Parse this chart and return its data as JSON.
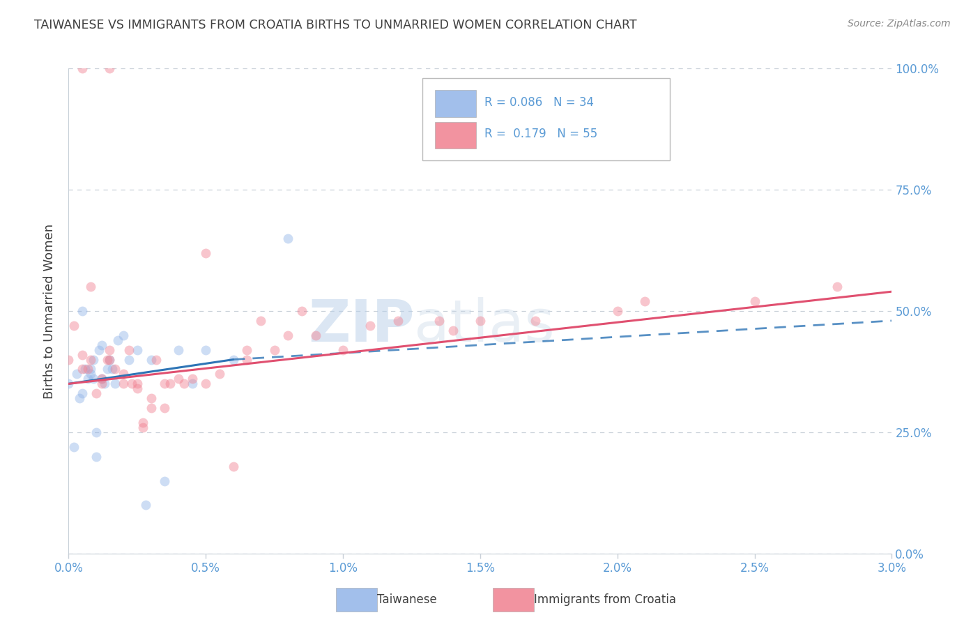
{
  "title": "TAIWANESE VS IMMIGRANTS FROM CROATIA BIRTHS TO UNMARRIED WOMEN CORRELATION CHART",
  "source": "Source: ZipAtlas.com",
  "ylabel": "Births to Unmarried Women",
  "xlabel_ticks": [
    "0.0%",
    "0.5%",
    "1.0%",
    "1.5%",
    "2.0%",
    "2.5%",
    "3.0%"
  ],
  "xlabel_vals": [
    0.0,
    0.5,
    1.0,
    1.5,
    2.0,
    2.5,
    3.0
  ],
  "ylabel_ticks": [
    "0.0%",
    "25.0%",
    "50.0%",
    "75.0%",
    "100.0%"
  ],
  "ylabel_vals": [
    0.0,
    25.0,
    50.0,
    75.0,
    100.0
  ],
  "xlim": [
    0.0,
    3.0
  ],
  "ylim": [
    0.0,
    100.0
  ],
  "taiwanese_color": "#92b4e8",
  "croatian_color": "#f08090",
  "taiwanese_R": "0.086",
  "taiwanese_N": "34",
  "croatian_R": "0.179",
  "croatian_N": "55",
  "watermark_zip": "ZIP",
  "watermark_atlas": "atlas",
  "legend_label1": "Taiwanese",
  "legend_label2": "Immigrants from Croatia",
  "taiwanese_x": [
    0.0,
    0.02,
    0.03,
    0.04,
    0.05,
    0.05,
    0.06,
    0.07,
    0.08,
    0.08,
    0.09,
    0.09,
    0.1,
    0.1,
    0.11,
    0.12,
    0.12,
    0.13,
    0.14,
    0.15,
    0.16,
    0.17,
    0.18,
    0.2,
    0.22,
    0.25,
    0.28,
    0.3,
    0.35,
    0.4,
    0.45,
    0.5,
    0.6,
    0.8
  ],
  "taiwanese_y": [
    35.0,
    22.0,
    37.0,
    32.0,
    50.0,
    33.0,
    38.0,
    36.0,
    37.0,
    38.0,
    36.0,
    40.0,
    20.0,
    25.0,
    42.0,
    36.0,
    43.0,
    35.0,
    38.0,
    40.0,
    38.0,
    35.0,
    44.0,
    45.0,
    40.0,
    42.0,
    10.0,
    40.0,
    15.0,
    42.0,
    35.0,
    42.0,
    40.0,
    65.0
  ],
  "croatian_x": [
    0.0,
    0.02,
    0.05,
    0.05,
    0.05,
    0.07,
    0.08,
    0.08,
    0.1,
    0.12,
    0.12,
    0.14,
    0.15,
    0.15,
    0.15,
    0.17,
    0.2,
    0.2,
    0.22,
    0.23,
    0.25,
    0.25,
    0.27,
    0.27,
    0.3,
    0.3,
    0.32,
    0.35,
    0.35,
    0.37,
    0.4,
    0.42,
    0.45,
    0.5,
    0.5,
    0.55,
    0.6,
    0.65,
    0.65,
    0.7,
    0.75,
    0.8,
    0.85,
    0.9,
    1.0,
    1.1,
    1.2,
    1.35,
    1.4,
    1.5,
    1.7,
    2.0,
    2.1,
    2.5,
    2.8
  ],
  "croatian_y": [
    40.0,
    47.0,
    38.0,
    41.0,
    100.0,
    38.0,
    40.0,
    55.0,
    33.0,
    36.0,
    35.0,
    40.0,
    40.0,
    42.0,
    100.0,
    38.0,
    35.0,
    37.0,
    42.0,
    35.0,
    34.0,
    35.0,
    26.0,
    27.0,
    30.0,
    32.0,
    40.0,
    30.0,
    35.0,
    35.0,
    36.0,
    35.0,
    36.0,
    35.0,
    62.0,
    37.0,
    18.0,
    40.0,
    42.0,
    48.0,
    42.0,
    45.0,
    50.0,
    45.0,
    42.0,
    47.0,
    48.0,
    48.0,
    46.0,
    48.0,
    48.0,
    50.0,
    52.0,
    52.0,
    55.0
  ],
  "tw_trend_x0": 0.0,
  "tw_trend_x1": 0.6,
  "tw_trend_y0": 35.0,
  "tw_trend_y1": 40.0,
  "tw_dash_x0": 0.6,
  "tw_dash_x1": 3.0,
  "tw_dash_y0": 40.0,
  "tw_dash_y1": 48.0,
  "cr_trend_x0": 0.0,
  "cr_trend_x1": 3.0,
  "cr_trend_y0": 35.0,
  "cr_trend_y1": 54.0,
  "background_color": "#ffffff",
  "title_color": "#404040",
  "axis_label_color": "#5b9bd5",
  "grid_color": "#c8d0d8",
  "marker_size": 100,
  "marker_alpha": 0.45
}
